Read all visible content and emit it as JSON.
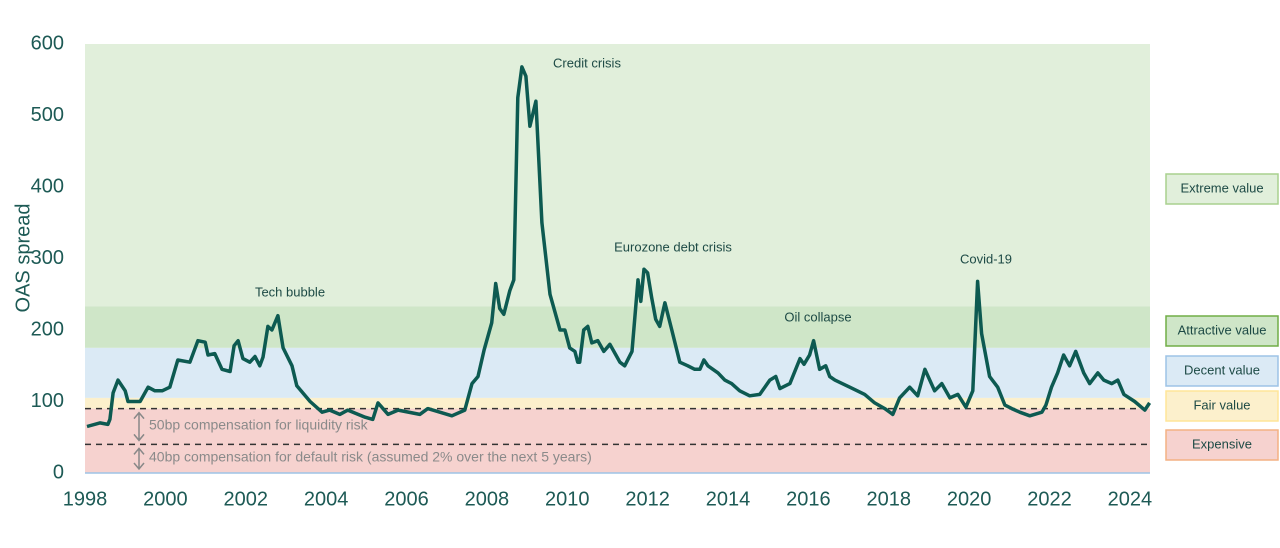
{
  "chart_data": {
    "type": "line",
    "y_label": "OAS spread",
    "x": [
      1998.05,
      1998.37,
      1998.57,
      1998.62,
      1998.7,
      1998.82,
      1999.0,
      1999.07,
      1999.37,
      1999.57,
      1999.74,
      1999.92,
      2000.11,
      2000.31,
      2000.61,
      2000.81,
      2000.99,
      2001.06,
      2001.23,
      2001.41,
      2001.61,
      2001.71,
      2001.81,
      2001.93,
      2002.1,
      2002.23,
      2002.35,
      2002.43,
      2002.55,
      2002.65,
      2002.8,
      2002.93,
      2003.15,
      2003.27,
      2003.6,
      2003.9,
      2004.09,
      2004.34,
      2004.54,
      2004.97,
      2005.16,
      2005.29,
      2005.54,
      2005.79,
      2006.33,
      2006.53,
      2006.83,
      2007.13,
      2007.45,
      2007.63,
      2007.78,
      2007.93,
      2008.12,
      2008.22,
      2008.32,
      2008.42,
      2008.57,
      2008.67,
      2008.77,
      2008.87,
      2008.97,
      2009.07,
      2009.22,
      2009.37,
      2009.57,
      2009.82,
      2009.94,
      2010.06,
      2010.19,
      2010.26,
      2010.31,
      2010.41,
      2010.51,
      2010.61,
      2010.76,
      2010.91,
      2011.06,
      2011.21,
      2011.31,
      2011.43,
      2011.61,
      2011.76,
      2011.83,
      2011.91,
      2012.0,
      2012.1,
      2012.2,
      2012.3,
      2012.43,
      2012.6,
      2012.8,
      2013.0,
      2013.17,
      2013.3,
      2013.4,
      2013.5,
      2013.75,
      2013.92,
      2014.09,
      2014.29,
      2014.54,
      2014.79,
      2015.04,
      2015.19,
      2015.29,
      2015.54,
      2015.79,
      2015.89,
      2016.03,
      2016.13,
      2016.28,
      2016.43,
      2016.53,
      2016.66,
      2017.03,
      2017.4,
      2017.65,
      2017.9,
      2018.1,
      2018.27,
      2018.52,
      2018.72,
      2018.9,
      2019.14,
      2019.32,
      2019.52,
      2019.72,
      2019.92,
      2020.09,
      2020.21,
      2020.31,
      2020.51,
      2020.71,
      2020.89,
      2021.06,
      2021.26,
      2021.51,
      2021.81,
      2021.91,
      2022.05,
      2022.2,
      2022.35,
      2022.5,
      2022.65,
      2022.85,
      2023.0,
      2023.2,
      2023.35,
      2023.55,
      2023.7,
      2023.85,
      2024.12,
      2024.37,
      2024.49
    ],
    "values": [
      65,
      70,
      68,
      75,
      112,
      130,
      115,
      100,
      100,
      120,
      115,
      115,
      120,
      158,
      155,
      185,
      183,
      165,
      167,
      145,
      142,
      178,
      185,
      160,
      155,
      163,
      150,
      162,
      205,
      200,
      220,
      175,
      150,
      122,
      100,
      85,
      88,
      82,
      88,
      78,
      75,
      98,
      82,
      88,
      82,
      90,
      85,
      80,
      88,
      125,
      135,
      172,
      210,
      265,
      230,
      222,
      255,
      270,
      525,
      568,
      555,
      485,
      520,
      350,
      250,
      200,
      200,
      175,
      170,
      155,
      155,
      200,
      205,
      182,
      185,
      170,
      180,
      165,
      155,
      150,
      170,
      270,
      240,
      285,
      280,
      245,
      215,
      205,
      238,
      200,
      155,
      150,
      145,
      145,
      158,
      150,
      140,
      130,
      125,
      115,
      108,
      110,
      130,
      135,
      118,
      125,
      160,
      152,
      165,
      185,
      145,
      150,
      135,
      130,
      120,
      110,
      98,
      90,
      82,
      105,
      120,
      108,
      145,
      115,
      125,
      105,
      110,
      92,
      115,
      268,
      195,
      135,
      120,
      95,
      90,
      85,
      80,
      85,
      95,
      120,
      140,
      165,
      150,
      170,
      140,
      125,
      140,
      130,
      125,
      130,
      110,
      100,
      88,
      98
    ],
    "color": "#0d5a51",
    "xlim": [
      1998,
      2024.5
    ],
    "xticks": [
      1998,
      2000,
      2002,
      2004,
      2006,
      2008,
      2010,
      2012,
      2014,
      2016,
      2018,
      2020,
      2022,
      2024
    ],
    "ylim": [
      0,
      600
    ],
    "yticks": [
      0,
      100,
      200,
      300,
      400,
      500,
      600
    ],
    "zones": [
      {
        "label": "Extreme value",
        "from": 233,
        "to": 600,
        "color": "#e1efdb",
        "border": "#a9d18e"
      },
      {
        "label": "Attractive value",
        "from": 175,
        "to": 233,
        "color": "#cfe6c8",
        "border": "#70ad47"
      },
      {
        "label": "Decent value",
        "from": 105,
        "to": 175,
        "color": "#dbeaf5",
        "border": "#9dc3e6"
      },
      {
        "label": "Fair value",
        "from": 90,
        "to": 105,
        "color": "#fcf0cc",
        "border": "#ffe699"
      },
      {
        "label": "Expensive",
        "from": 0,
        "to": 90,
        "color": "#f6d2cf",
        "border": "#f4b183"
      }
    ],
    "reference_lines": [
      90,
      40
    ],
    "notes": [
      "50bp compensation for liquidity risk",
      "40bp compensation for default risk (assumed 2% over the next 5 years)"
    ],
    "annotations": [
      "Tech bubble",
      "Credit crisis",
      "Eurozone debt crisis",
      "Oil collapse",
      "Covid-19"
    ]
  }
}
